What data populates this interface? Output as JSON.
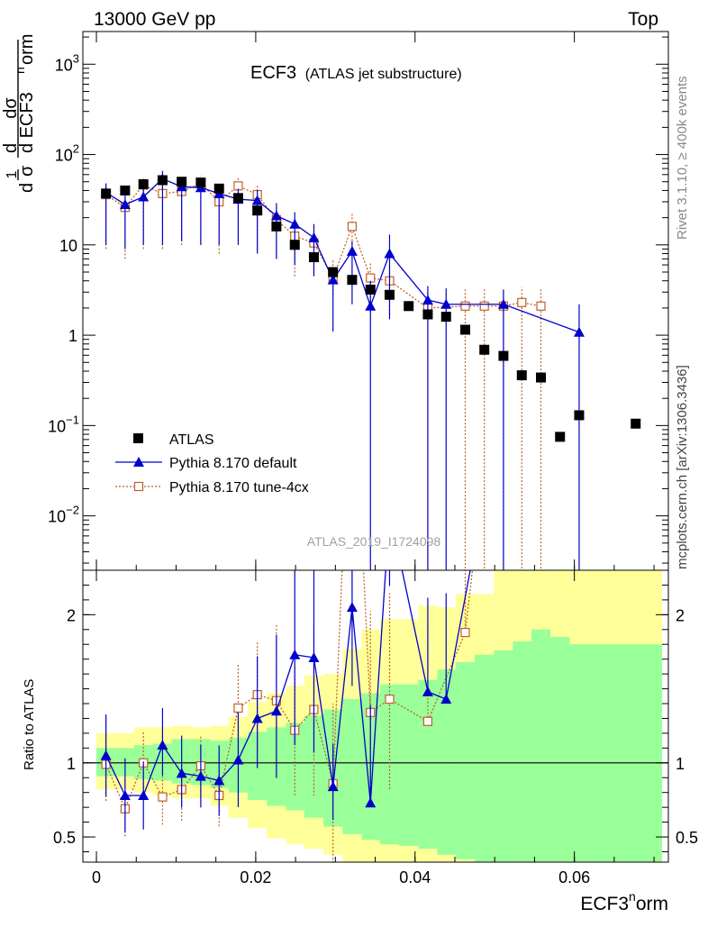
{
  "header": {
    "left": "13000 GeV pp",
    "right": "Top",
    "title_main": "ECF3",
    "title_sub": "(ATLAS jet substructure)",
    "analysis_id": "ATLAS_2019_I1724098",
    "side_top": "Rivet 3.1.10, ≥ 400k events",
    "side_bottom": "mcplots.cern.ch [arXiv:1306.3436]"
  },
  "axes": {
    "x_label_main": "ECF3",
    "x_label_sup": "n",
    "x_label_tail": "orm",
    "ratio_label": "Ratio to ATLAS",
    "y_frac_d": "d",
    "y_frac_sigma": "σ",
    "y_frac_one": "1",
    "y_frac_d2": "d",
    "y_frac_num": "dσ",
    "y_frac_den": "d ECF3",
    "y_frac_den_sup": "n",
    "y_frac_den_tail": "orm"
  },
  "colors": {
    "atlas": "#000000",
    "default": "#0000cc",
    "tune4cx": "#c0602a",
    "band_inner": "#99ff99",
    "band_outer": "#ffff99"
  },
  "chart_data": {
    "type": "scatter",
    "x_range": [
      -0.0017,
      0.0718
    ],
    "main_ylim": [
      0.0025,
      2300
    ],
    "main_yscale": "log",
    "ratio_ylim": [
      0.33,
      2.3
    ],
    "x_ticks": [
      {
        "v": 0,
        "label": "0"
      },
      {
        "v": 0.02,
        "label": "0.02"
      },
      {
        "v": 0.04,
        "label": "0.04"
      },
      {
        "v": 0.06,
        "label": "0.06"
      }
    ],
    "main_y_ticks": [
      {
        "v": 0.01,
        "base": "10",
        "exp": "−2"
      },
      {
        "v": 0.1,
        "base": "10",
        "exp": "−1"
      },
      {
        "v": 1,
        "base": "1",
        "exp": ""
      },
      {
        "v": 10,
        "base": "10",
        "exp": ""
      },
      {
        "v": 100,
        "base": "10",
        "exp": "2"
      },
      {
        "v": 1000,
        "base": "10",
        "exp": "3"
      }
    ],
    "ratio_y_ticks": [
      {
        "v": 0.5,
        "label": "0.5"
      },
      {
        "v": 1,
        "label": "1"
      },
      {
        "v": 2,
        "label": "2"
      }
    ],
    "legend": [
      {
        "key": "atlas",
        "label": "ATLAS"
      },
      {
        "key": "default",
        "label": "Pythia 8.170 default"
      },
      {
        "key": "tune4cx",
        "label": "Pythia 8.170 tune-4cx"
      }
    ],
    "series": [
      {
        "name": "ATLAS",
        "key": "atlas",
        "x": [
          0.0012,
          0.0036,
          0.0059,
          0.0083,
          0.0107,
          0.0131,
          0.0154,
          0.0178,
          0.0202,
          0.0226,
          0.0249,
          0.0273,
          0.0297,
          0.0321,
          0.0344,
          0.0368,
          0.0392,
          0.0416,
          0.0439,
          0.0463,
          0.0487,
          0.0511,
          0.0534,
          0.0558,
          0.0582,
          0.0606,
          0.0677
        ],
        "y": [
          37,
          40,
          47,
          52,
          50,
          49,
          42,
          33,
          24,
          16,
          10,
          7.3,
          5,
          4.1,
          3.2,
          2.8,
          2.1,
          1.7,
          1.6,
          1.15,
          0.69,
          0.59,
          0.36,
          0.34,
          0.075,
          0.13,
          0.105
        ]
      },
      {
        "name": "Pythia 8.170 default",
        "key": "default",
        "x": [
          0.0012,
          0.0036,
          0.0059,
          0.0083,
          0.0107,
          0.0131,
          0.0154,
          0.0178,
          0.0202,
          0.0226,
          0.0249,
          0.0273,
          0.0297,
          0.0321,
          0.0344,
          0.0368,
          0.0416,
          0.0439,
          0.0511,
          0.0606
        ],
        "y": [
          38,
          28,
          34,
          54,
          44,
          43,
          37,
          32,
          31,
          21,
          17,
          12,
          4.1,
          8.5,
          2.1,
          8,
          2.45,
          2.2,
          2.2,
          1.08
        ],
        "err_lo": [
          28,
          19,
          24,
          44,
          33,
          33,
          27,
          22,
          23,
          14,
          11,
          7.5,
          3.0,
          6.3,
          2.1,
          6.5,
          2.45,
          2.2,
          2.2,
          1.08
        ],
        "err_hi": [
          48,
          37,
          44,
          66,
          56,
          53,
          47,
          42,
          41,
          29,
          23,
          17,
          5.5,
          11,
          4,
          13,
          3.5,
          3.3,
          3.2,
          2.2
        ],
        "ratio": [
          1.05,
          0.78,
          0.78,
          1.12,
          0.93,
          0.91,
          0.88,
          1.02,
          1.3,
          1.35,
          1.73,
          1.71,
          0.84,
          2.05,
          0.73,
          2.7,
          1.48,
          1.43,
          3.5,
          8
        ]
      },
      {
        "name": "Pythia 8.170 tune-4cx",
        "key": "tune4cx",
        "x": [
          0.0012,
          0.0036,
          0.0059,
          0.0083,
          0.0107,
          0.0131,
          0.0154,
          0.0178,
          0.0202,
          0.0226,
          0.0249,
          0.0273,
          0.0297,
          0.0321,
          0.0344,
          0.0368,
          0.0416,
          0.0463,
          0.0487,
          0.0511,
          0.0534,
          0.0558
        ],
        "y": [
          36,
          26,
          46,
          37,
          39,
          48,
          30,
          45,
          36,
          19,
          12.5,
          10.5,
          4.3,
          16,
          4.3,
          4,
          2,
          2.1,
          2.1,
          2.1,
          2.3,
          2.1
        ],
        "err_lo": [
          27,
          19,
          37,
          28,
          29,
          38,
          22,
          35,
          27,
          12,
          8,
          6,
          1.5,
          9,
          2.5,
          2.3,
          2,
          2.1,
          2.1,
          2.1,
          2.3,
          2.1
        ],
        "err_hi": [
          46,
          33,
          56,
          46,
          49,
          58,
          38,
          55,
          45,
          26,
          17,
          15,
          7,
          23,
          6.5,
          6,
          3,
          3.2,
          3.2,
          3.2,
          3.4,
          3.2
        ],
        "ratio": [
          0.99,
          0.69,
          1.0,
          0.77,
          0.82,
          0.98,
          0.78,
          1.37,
          1.46,
          1.42,
          1.22,
          1.36,
          0.86,
          3.9,
          1.34,
          1.43,
          1.28,
          1.88,
          3.0,
          3.5,
          6,
          6
        ]
      }
    ],
    "uncertainty_bands": {
      "edges": [
        0,
        0.0024,
        0.0047,
        0.0071,
        0.0095,
        0.0119,
        0.0143,
        0.0166,
        0.019,
        0.0214,
        0.0238,
        0.0261,
        0.0285,
        0.0309,
        0.0333,
        0.0356,
        0.038,
        0.0404,
        0.0428,
        0.0451,
        0.0475,
        0.0499,
        0.0523,
        0.0546,
        0.057,
        0.0594,
        0.0618,
        0.071
      ],
      "inner": [
        [
          0.91,
          1.1
        ],
        [
          0.91,
          1.1
        ],
        [
          0.89,
          1.12
        ],
        [
          0.88,
          1.13
        ],
        [
          0.86,
          1.16
        ],
        [
          0.85,
          1.16
        ],
        [
          0.83,
          1.15
        ],
        [
          0.8,
          1.17
        ],
        [
          0.75,
          1.21
        ],
        [
          0.71,
          1.24
        ],
        [
          0.68,
          1.27
        ],
        [
          0.63,
          1.32
        ],
        [
          0.57,
          1.36
        ],
        [
          0.52,
          1.43
        ],
        [
          0.48,
          1.47
        ],
        [
          0.45,
          1.53
        ],
        [
          0.44,
          1.53
        ],
        [
          0.42,
          1.56
        ],
        [
          0.38,
          1.63
        ],
        [
          0.35,
          1.68
        ],
        [
          0.33,
          1.73
        ],
        [
          0.33,
          1.76
        ],
        [
          0.33,
          1.82
        ],
        [
          0.33,
          1.9
        ],
        [
          0.33,
          1.85
        ],
        [
          0.33,
          1.8
        ],
        [
          0.33,
          1.8
        ]
      ],
      "outer": [
        [
          0.82,
          1.2
        ],
        [
          0.82,
          1.2
        ],
        [
          0.8,
          1.24
        ],
        [
          0.78,
          1.24
        ],
        [
          0.76,
          1.25
        ],
        [
          0.76,
          1.24
        ],
        [
          0.71,
          1.25
        ],
        [
          0.63,
          1.31
        ],
        [
          0.56,
          1.41
        ],
        [
          0.49,
          1.47
        ],
        [
          0.45,
          1.52
        ],
        [
          0.42,
          1.59
        ],
        [
          0.38,
          1.6
        ],
        [
          0.33,
          1.77
        ],
        [
          0.33,
          1.9
        ],
        [
          0.33,
          1.97
        ],
        [
          0.33,
          1.97
        ],
        [
          0.33,
          2.06
        ],
        [
          0.33,
          2.05
        ],
        [
          0.33,
          2.14
        ],
        [
          0.33,
          2.14
        ],
        [
          0.33,
          2.3
        ],
        [
          0.33,
          2.3
        ],
        [
          0.33,
          2.3
        ],
        [
          0.33,
          2.3
        ],
        [
          0.33,
          2.3
        ],
        [
          0.33,
          2.3
        ]
      ]
    }
  }
}
